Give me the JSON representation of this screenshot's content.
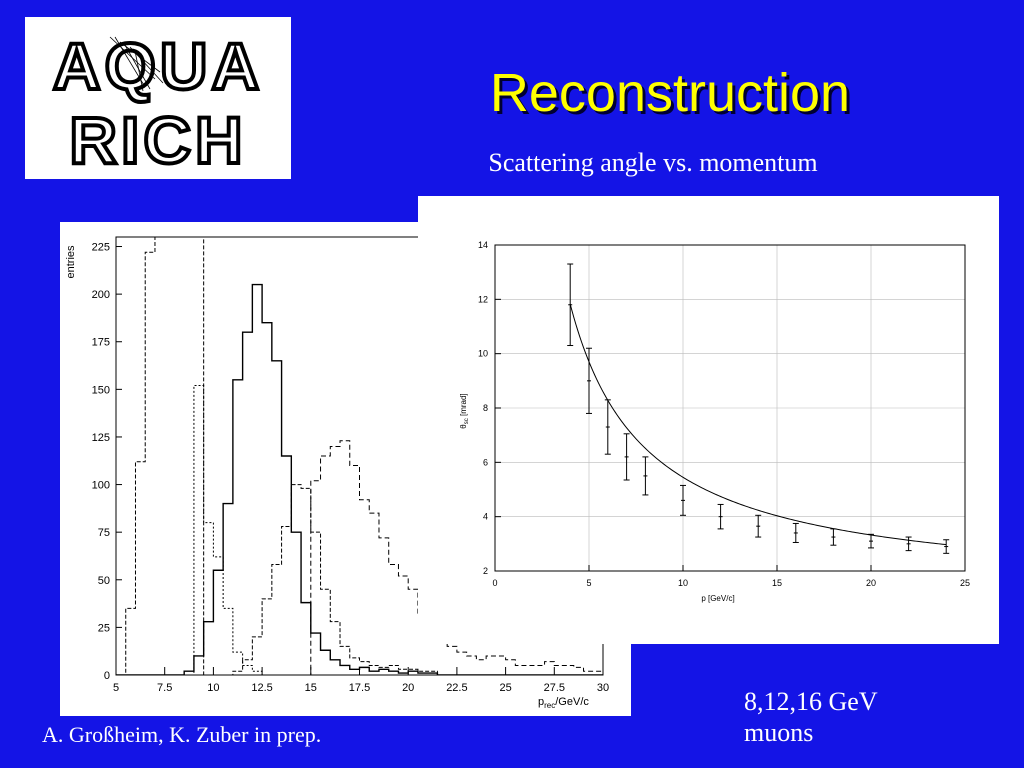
{
  "slide": {
    "logo_text": [
      "AQUA",
      "RICH"
    ],
    "title": "Reconstruction",
    "subtitle": "Scattering angle vs. momentum",
    "caption": "A. Großheim, K. Zuber in prep.",
    "energy_line1": "8,12,16 GeV",
    "energy_line2": "muons",
    "colors": {
      "background": "#1414e6",
      "title": "#ffff00",
      "text": "#ffffff"
    }
  },
  "chart_data": [
    {
      "type": "histogram",
      "ylabel": "entries",
      "xlabel_main": "p",
      "xlabel_sub": "rec",
      "xlabel_unit": "/GeV/c",
      "xlim": [
        5,
        30
      ],
      "ylim": [
        0,
        230
      ],
      "xticks": [
        "5",
        "7.5",
        "10",
        "12.5",
        "15",
        "17.5",
        "20",
        "22.5",
        "25",
        "27.5",
        "30"
      ],
      "yticks": [
        "0",
        "25",
        "50",
        "75",
        "100",
        "125",
        "150",
        "175",
        "200",
        "225"
      ],
      "bin_width": 0.5,
      "series": [
        {
          "style": "dashed",
          "x_start": 5.0,
          "values": [
            0,
            35,
            112,
            222,
            230,
            230,
            230,
            230,
            230,
            0,
            0,
            0,
            0,
            0,
            0,
            0,
            0,
            0,
            0,
            0,
            0,
            0,
            0,
            0,
            0,
            0,
            0,
            0,
            0,
            0,
            0,
            0,
            0,
            0,
            0,
            0,
            0,
            0,
            0,
            0,
            0,
            0,
            0,
            0,
            0,
            0,
            0,
            0,
            0,
            0
          ]
        },
        {
          "style": "dotted",
          "x_start": 5.0,
          "values": [
            0,
            0,
            0,
            0,
            0,
            0,
            0,
            0,
            152,
            80,
            62,
            35,
            12,
            5,
            2,
            0,
            0,
            0,
            0,
            0,
            0,
            0,
            0,
            0,
            0,
            0,
            0,
            0,
            0,
            0,
            0,
            0,
            0,
            0,
            0,
            0,
            0,
            0,
            0,
            0,
            0,
            0,
            0,
            0,
            0,
            0,
            0,
            0,
            0,
            0
          ]
        },
        {
          "style": "solid",
          "x_start": 5.0,
          "values": [
            0,
            0,
            0,
            0,
            0,
            0,
            0,
            2,
            10,
            28,
            55,
            90,
            155,
            180,
            205,
            185,
            165,
            115,
            75,
            38,
            22,
            13,
            8,
            5,
            3,
            4,
            2,
            3,
            2,
            1,
            2,
            1,
            1,
            0,
            0,
            0,
            0,
            0,
            0,
            0,
            0,
            0,
            0,
            0,
            0,
            0,
            0,
            0,
            0,
            0
          ]
        },
        {
          "style": "dashed",
          "x_start": 5.0,
          "values": [
            0,
            0,
            0,
            0,
            0,
            0,
            0,
            0,
            0,
            0,
            0,
            0,
            2,
            8,
            20,
            40,
            58,
            78,
            100,
            98,
            75,
            45,
            28,
            15,
            9,
            7,
            5,
            4,
            5,
            3,
            3,
            2,
            2,
            0,
            0,
            0,
            0,
            0,
            0,
            0,
            0,
            0,
            0,
            0,
            0,
            0,
            0,
            0,
            0,
            0
          ]
        },
        {
          "style": "dashed2",
          "x_start": 5.0,
          "values": [
            0,
            0,
            0,
            0,
            0,
            0,
            0,
            0,
            0,
            0,
            0,
            0,
            0,
            0,
            0,
            0,
            0,
            0,
            0,
            0,
            102,
            115,
            120,
            123,
            110,
            92,
            85,
            72,
            58,
            52,
            45,
            32,
            25,
            18,
            15,
            12,
            10,
            8,
            10,
            10,
            8,
            5,
            5,
            5,
            7,
            5,
            5,
            4,
            2,
            2
          ]
        }
      ]
    },
    {
      "type": "line",
      "xlabel": "p [GeV/c]",
      "ylabel_main": "θ",
      "ylabel_sub": "sc",
      "ylabel_unit": "[mrad]",
      "xlim": [
        0,
        25
      ],
      "ylim": [
        2,
        14
      ],
      "xticks": [
        "0",
        "5",
        "10",
        "15",
        "20",
        "25"
      ],
      "yticks": [
        "2",
        "4",
        "6",
        "8",
        "10",
        "12",
        "14"
      ],
      "grid": true,
      "points": [
        {
          "x": 4,
          "y": 11.8,
          "err": 1.5
        },
        {
          "x": 5,
          "y": 9.0,
          "err": 1.2
        },
        {
          "x": 6,
          "y": 7.3,
          "err": 1.0
        },
        {
          "x": 7,
          "y": 6.2,
          "err": 0.85
        },
        {
          "x": 8,
          "y": 5.5,
          "err": 0.7
        },
        {
          "x": 10,
          "y": 4.6,
          "err": 0.55
        },
        {
          "x": 12,
          "y": 4.0,
          "err": 0.45
        },
        {
          "x": 14,
          "y": 3.65,
          "err": 0.4
        },
        {
          "x": 16,
          "y": 3.4,
          "err": 0.35
        },
        {
          "x": 18,
          "y": 3.25,
          "err": 0.3
        },
        {
          "x": 20,
          "y": 3.1,
          "err": 0.25
        },
        {
          "x": 22,
          "y": 3.0,
          "err": 0.25
        },
        {
          "x": 24,
          "y": 2.9,
          "err": 0.25
        }
      ],
      "fit": {
        "a": 1.2,
        "b": 42.5
      }
    }
  ]
}
